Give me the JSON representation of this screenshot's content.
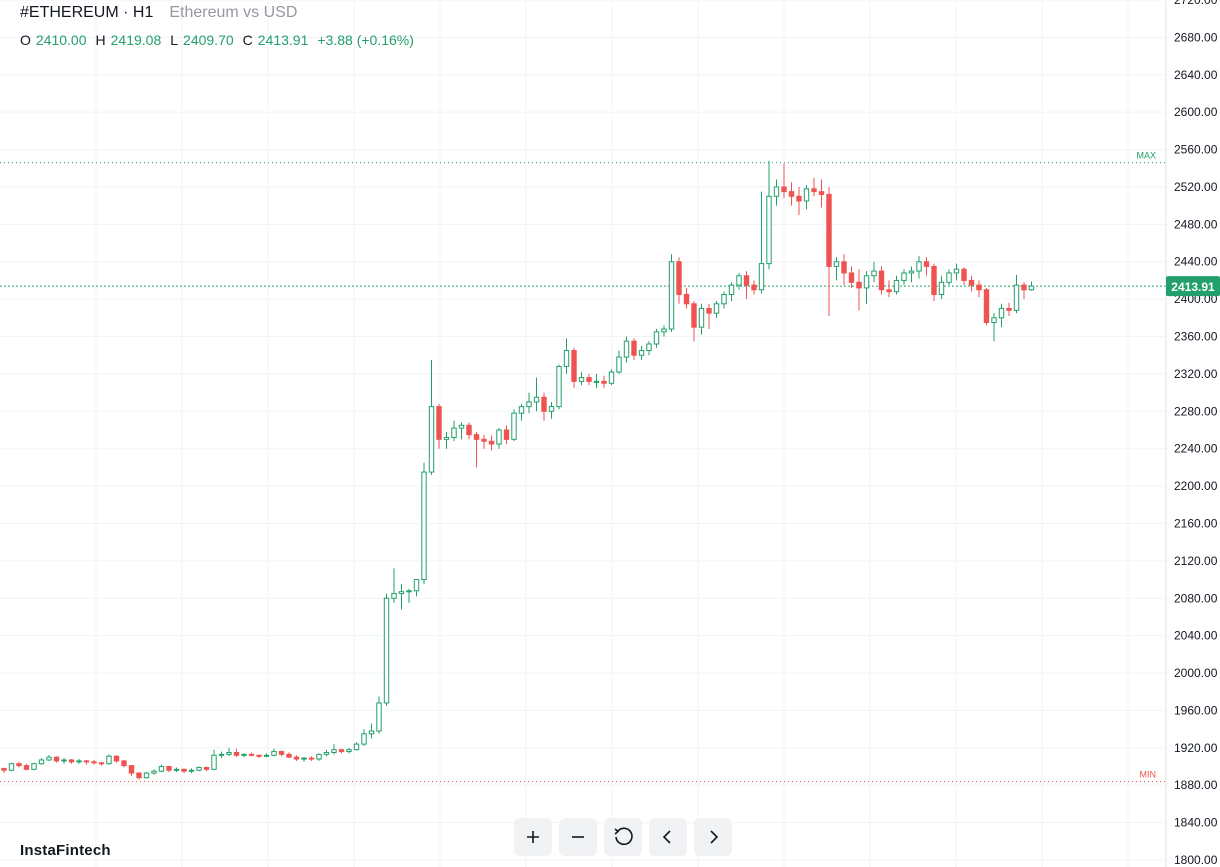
{
  "header": {
    "symbol": "#ETHEREUM · H1",
    "description": "Ethereum vs USD"
  },
  "ohlc": {
    "o_label": "O",
    "o_value": "2410.00",
    "h_label": "H",
    "h_value": "2419.08",
    "l_label": "L",
    "l_value": "2409.70",
    "c_label": "C",
    "c_value": "2413.91",
    "change": "+3.88 (+0.16%)"
  },
  "brand": "InstaFintech",
  "toolbar": [
    {
      "name": "zoom-in-button",
      "icon": "plus-icon"
    },
    {
      "name": "zoom-out-button",
      "icon": "minus-icon"
    },
    {
      "name": "reset-button",
      "icon": "reset-icon"
    },
    {
      "name": "scroll-left-button",
      "icon": "chevron-left-icon"
    },
    {
      "name": "scroll-right-button",
      "icon": "chevron-right-icon"
    }
  ],
  "colors": {
    "up": "#22a06b",
    "down": "#ef5350",
    "grid": "#f0f3fa",
    "axis_text": "#131722"
  },
  "chart_data": {
    "type": "candlestick",
    "ylim": [
      1800,
      2720
    ],
    "yticks": [
      "1800.00",
      "1840.00",
      "1880.00",
      "1920.00",
      "1960.00",
      "2000.00",
      "2040.00",
      "2080.00",
      "2120.00",
      "2160.00",
      "2200.00",
      "2240.00",
      "2280.00",
      "2320.00",
      "2360.00",
      "2400.00",
      "2440.00",
      "2480.00",
      "2520.00",
      "2560.00",
      "2600.00",
      "2640.00",
      "2680.00",
      "2720.00"
    ],
    "max_line": {
      "label": "MAX",
      "value": 2546
    },
    "min_line": {
      "label": "MIN",
      "value": 1884
    },
    "last_price": {
      "label": "2413.91",
      "value": 2413.91
    },
    "candles": [
      [
        1898,
        1898,
        1893,
        1896
      ],
      [
        1896,
        1904,
        1895,
        1903
      ],
      [
        1903,
        1905,
        1899,
        1901
      ],
      [
        1901,
        1903,
        1896,
        1897
      ],
      [
        1897,
        1904,
        1896,
        1903
      ],
      [
        1903,
        1909,
        1902,
        1907
      ],
      [
        1907,
        1912,
        1906,
        1910
      ],
      [
        1910,
        1911,
        1904,
        1906
      ],
      [
        1906,
        1909,
        1903,
        1907
      ],
      [
        1907,
        1908,
        1903,
        1905
      ],
      [
        1905,
        1908,
        1903,
        1906
      ],
      [
        1906,
        1907,
        1902,
        1905
      ],
      [
        1905,
        1907,
        1902,
        1904
      ],
      [
        1904,
        1905,
        1901,
        1903
      ],
      [
        1903,
        1913,
        1902,
        1911
      ],
      [
        1911,
        1912,
        1904,
        1906
      ],
      [
        1906,
        1907,
        1899,
        1901
      ],
      [
        1901,
        1901,
        1890,
        1893
      ],
      [
        1893,
        1894,
        1886,
        1888
      ],
      [
        1888,
        1894,
        1887,
        1893
      ],
      [
        1893,
        1897,
        1891,
        1895
      ],
      [
        1895,
        1902,
        1894,
        1900
      ],
      [
        1900,
        1901,
        1894,
        1896
      ],
      [
        1896,
        1899,
        1894,
        1897
      ],
      [
        1897,
        1898,
        1893,
        1895
      ],
      [
        1895,
        1898,
        1893,
        1896
      ],
      [
        1896,
        1900,
        1895,
        1899
      ],
      [
        1899,
        1900,
        1895,
        1897
      ],
      [
        1897,
        1918,
        1896,
        1912
      ],
      [
        1912,
        1916,
        1909,
        1913
      ],
      [
        1913,
        1920,
        1911,
        1915
      ],
      [
        1915,
        1919,
        1910,
        1912
      ],
      [
        1912,
        1914,
        1910,
        1913
      ],
      [
        1913,
        1915,
        1911,
        1912
      ],
      [
        1912,
        1913,
        1909,
        1911
      ],
      [
        1911,
        1914,
        1910,
        1912
      ],
      [
        1912,
        1919,
        1911,
        1916
      ],
      [
        1916,
        1917,
        1911,
        1913
      ],
      [
        1913,
        1915,
        1909,
        1910
      ],
      [
        1910,
        1912,
        1906,
        1908
      ],
      [
        1908,
        1910,
        1905,
        1909
      ],
      [
        1909,
        1911,
        1906,
        1908
      ],
      [
        1908,
        1914,
        1906,
        1913
      ],
      [
        1913,
        1918,
        1911,
        1915
      ],
      [
        1915,
        1924,
        1913,
        1918
      ],
      [
        1918,
        1919,
        1914,
        1916
      ],
      [
        1916,
        1920,
        1914,
        1918
      ],
      [
        1918,
        1926,
        1917,
        1924
      ],
      [
        1924,
        1940,
        1922,
        1935
      ],
      [
        1935,
        1946,
        1930,
        1938
      ],
      [
        1938,
        1975,
        1935,
        1968
      ],
      [
        1968,
        2085,
        1965,
        2080
      ],
      [
        2080,
        2112,
        2075,
        2085
      ],
      [
        2085,
        2095,
        2068,
        2087
      ],
      [
        2087,
        2090,
        2075,
        2088
      ],
      [
        2088,
        2098,
        2082,
        2100
      ],
      [
        2100,
        2225,
        2095,
        2215
      ],
      [
        2215,
        2335,
        2212,
        2285
      ],
      [
        2285,
        2288,
        2240,
        2250
      ],
      [
        2250,
        2258,
        2240,
        2252
      ],
      [
        2252,
        2270,
        2248,
        2262
      ],
      [
        2262,
        2268,
        2250,
        2265
      ],
      [
        2265,
        2268,
        2250,
        2255
      ],
      [
        2255,
        2258,
        2220,
        2250
      ],
      [
        2250,
        2255,
        2240,
        2248
      ],
      [
        2248,
        2254,
        2238,
        2245
      ],
      [
        2245,
        2262,
        2240,
        2260
      ],
      [
        2260,
        2265,
        2245,
        2250
      ],
      [
        2250,
        2282,
        2248,
        2278
      ],
      [
        2278,
        2288,
        2270,
        2285
      ],
      [
        2285,
        2300,
        2278,
        2290
      ],
      [
        2290,
        2316,
        2280,
        2295
      ],
      [
        2295,
        2300,
        2270,
        2280
      ],
      [
        2280,
        2290,
        2272,
        2285
      ],
      [
        2285,
        2330,
        2282,
        2328
      ],
      [
        2328,
        2358,
        2320,
        2345
      ],
      [
        2345,
        2348,
        2305,
        2312
      ],
      [
        2312,
        2322,
        2308,
        2316
      ],
      [
        2316,
        2320,
        2308,
        2312
      ],
      [
        2312,
        2320,
        2305,
        2312
      ],
      [
        2312,
        2318,
        2305,
        2310
      ],
      [
        2310,
        2325,
        2308,
        2322
      ],
      [
        2322,
        2345,
        2320,
        2338
      ],
      [
        2338,
        2360,
        2332,
        2355
      ],
      [
        2355,
        2358,
        2335,
        2340
      ],
      [
        2340,
        2350,
        2335,
        2345
      ],
      [
        2345,
        2355,
        2340,
        2352
      ],
      [
        2352,
        2368,
        2348,
        2365
      ],
      [
        2365,
        2372,
        2360,
        2368
      ],
      [
        2368,
        2448,
        2365,
        2440
      ],
      [
        2440,
        2445,
        2395,
        2405
      ],
      [
        2405,
        2412,
        2390,
        2395
      ],
      [
        2395,
        2398,
        2355,
        2370
      ],
      [
        2370,
        2395,
        2362,
        2390
      ],
      [
        2390,
        2395,
        2368,
        2385
      ],
      [
        2385,
        2398,
        2380,
        2395
      ],
      [
        2395,
        2408,
        2390,
        2405
      ],
      [
        2405,
        2418,
        2398,
        2415
      ],
      [
        2415,
        2428,
        2410,
        2425
      ],
      [
        2425,
        2430,
        2400,
        2415
      ],
      [
        2415,
        2420,
        2405,
        2410
      ],
      [
        2410,
        2515,
        2406,
        2438
      ],
      [
        2438,
        2548,
        2432,
        2510
      ],
      [
        2510,
        2528,
        2500,
        2520
      ],
      [
        2520,
        2545,
        2508,
        2515
      ],
      [
        2515,
        2525,
        2500,
        2510
      ],
      [
        2510,
        2520,
        2490,
        2505
      ],
      [
        2505,
        2522,
        2496,
        2518
      ],
      [
        2518,
        2530,
        2510,
        2515
      ],
      [
        2515,
        2528,
        2498,
        2512
      ],
      [
        2512,
        2520,
        2382,
        2435
      ],
      [
        2435,
        2445,
        2420,
        2440
      ],
      [
        2440,
        2448,
        2415,
        2428
      ],
      [
        2428,
        2435,
        2412,
        2418
      ],
      [
        2418,
        2432,
        2388,
        2412
      ],
      [
        2412,
        2430,
        2395,
        2425
      ],
      [
        2425,
        2440,
        2418,
        2430
      ],
      [
        2430,
        2435,
        2405,
        2410
      ],
      [
        2410,
        2420,
        2402,
        2408
      ],
      [
        2408,
        2425,
        2405,
        2420
      ],
      [
        2420,
        2432,
        2415,
        2428
      ],
      [
        2428,
        2435,
        2418,
        2430
      ],
      [
        2430,
        2446,
        2422,
        2440
      ],
      [
        2440,
        2445,
        2425,
        2435
      ],
      [
        2435,
        2438,
        2398,
        2405
      ],
      [
        2405,
        2425,
        2400,
        2418
      ],
      [
        2418,
        2432,
        2415,
        2428
      ],
      [
        2428,
        2438,
        2420,
        2432
      ],
      [
        2432,
        2434,
        2415,
        2420
      ],
      [
        2420,
        2425,
        2408,
        2415
      ],
      [
        2415,
        2420,
        2402,
        2410
      ],
      [
        2410,
        2412,
        2372,
        2375
      ],
      [
        2375,
        2385,
        2355,
        2380
      ],
      [
        2380,
        2395,
        2370,
        2390
      ],
      [
        2390,
        2396,
        2382,
        2388
      ],
      [
        2388,
        2426,
        2385,
        2415
      ],
      [
        2415,
        2418,
        2400,
        2410
      ],
      [
        2410,
        2419,
        2409,
        2414
      ]
    ]
  }
}
